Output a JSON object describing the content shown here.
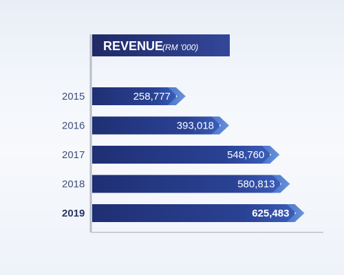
{
  "chart_data": {
    "type": "bar",
    "orientation": "horizontal",
    "title": "REVENUE",
    "unit": "(RM '000)",
    "categories": [
      "2015",
      "2016",
      "2017",
      "2018",
      "2019"
    ],
    "values": [
      258777,
      393018,
      548760,
      580813,
      625483
    ],
    "value_labels": [
      "258,777",
      "393,018",
      "548,760",
      "580,813",
      "625,483"
    ],
    "highlight_category": "2019",
    "xlim": [
      0,
      650000
    ],
    "grid": false,
    "legend": "none"
  },
  "colors": {
    "bar_dark": "#1f2f73",
    "bar_light": "#3a5db8",
    "arrow_tip": "#6a93dc",
    "title_bg": "#27357a",
    "axis": "#b8bec8",
    "label": "#3f4f79"
  }
}
